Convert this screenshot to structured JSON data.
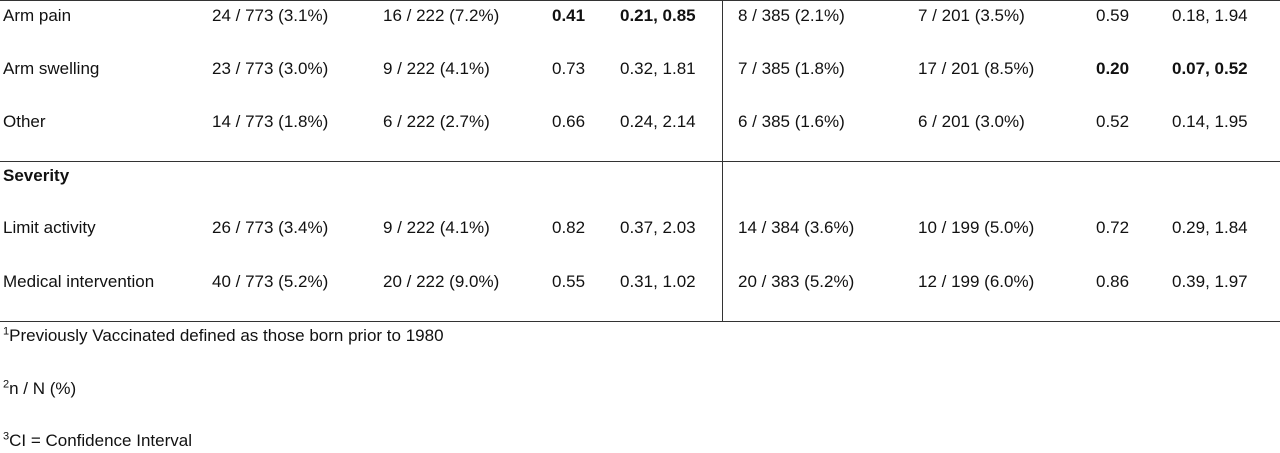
{
  "rows": [
    {
      "label": "Arm pain",
      "c1": "24 / 773 (3.1%)",
      "c2": "16 / 222 (7.2%)",
      "c3": "0.41",
      "c4": "0.21, 0.85",
      "c5": "8 / 385 (2.1%)",
      "c6": "7 / 201 (3.5%)",
      "c7": "0.59",
      "c8": "0.18, 1.94"
    },
    {
      "label": "Arm swelling",
      "c1": "23 / 773 (3.0%)",
      "c2": "9 / 222 (4.1%)",
      "c3": "0.73",
      "c4": "0.32, 1.81",
      "c5": "7 / 385 (1.8%)",
      "c6": "17 / 201 (8.5%)",
      "c7": "0.20",
      "c8": "0.07, 0.52"
    },
    {
      "label": "Other",
      "c1": "14 / 773 (1.8%)",
      "c2": "6 / 222 (2.7%)",
      "c3": "0.66",
      "c4": "0.24, 2.14",
      "c5": "6 / 385 (1.6%)",
      "c6": "6 / 201 (3.0%)",
      "c7": "0.52",
      "c8": "0.14, 1.95"
    }
  ],
  "severity": {
    "label": "Severity",
    "rows": [
      {
        "label": "Limit activity",
        "c1": "26 / 773 (3.4%)",
        "c2": "9 / 222 (4.1%)",
        "c3": "0.82",
        "c4": "0.37, 2.03",
        "c5": "14 / 384 (3.6%)",
        "c6": "10 / 199 (5.0%)",
        "c7": "0.72",
        "c8": "0.29, 1.84"
      },
      {
        "label": "Medical intervention",
        "c1": "40 / 773 (5.2%)",
        "c2": "20 / 222 (9.0%)",
        "c3": "0.55",
        "c4": "0.31, 1.02",
        "c5": "20 / 383 (5.2%)",
        "c6": "12 / 199 (6.0%)",
        "c7": "0.86",
        "c8": "0.39, 1.97"
      }
    ]
  },
  "footnotes": [
    {
      "mark": "1",
      "text": "Previously Vaccinated defined as those born prior to 1980"
    },
    {
      "mark": "2",
      "text": "n / N (%)"
    },
    {
      "mark": "3",
      "text": "CI = Confidence Interval"
    }
  ]
}
